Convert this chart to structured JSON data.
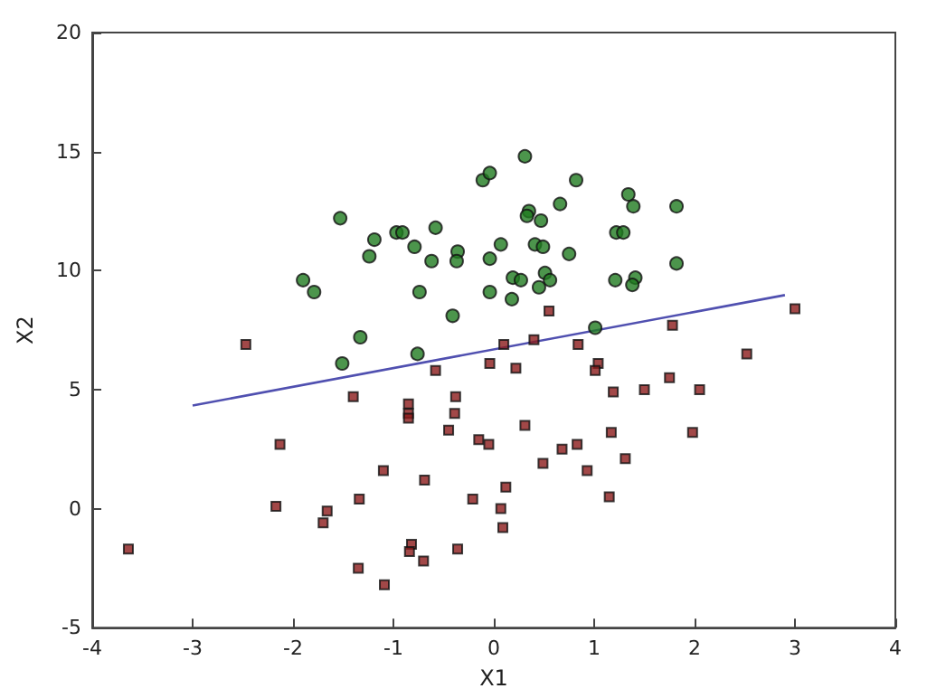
{
  "chart_data": {
    "type": "scatter",
    "xlabel": "X1",
    "ylabel": "X2",
    "xlim": [
      -4,
      4
    ],
    "xticks": [
      -4,
      -3,
      -2,
      -1,
      0,
      1,
      2,
      3,
      4
    ],
    "ylim": [
      -5,
      20
    ],
    "yticks": [
      -5,
      0,
      5,
      10,
      15,
      20
    ],
    "grid": false,
    "series": [
      {
        "marker": "circle",
        "color": "#1f7a1f",
        "x": [
          -1.53,
          -1.9,
          -1.79,
          -1.19,
          -1.24,
          -0.97,
          -0.91,
          -0.79,
          -0.58,
          -0.62,
          -0.36,
          -0.37,
          -0.74,
          -0.41,
          -1.33,
          -0.76,
          -1.51,
          -0.11,
          -0.04,
          -0.04,
          -0.04,
          0.31,
          0.82,
          0.66,
          0.35,
          0.33,
          0.47,
          1.34,
          1.39,
          1.82,
          1.22,
          1.29,
          0.07,
          0.41,
          0.49,
          0.75,
          1.82,
          0.19,
          0.27,
          0.51,
          0.56,
          0.45,
          1.21,
          1.41,
          1.38,
          0.18,
          1.01
        ],
        "values": [
          12.2,
          9.6,
          9.1,
          11.3,
          10.6,
          11.6,
          11.6,
          11.0,
          11.8,
          10.4,
          10.8,
          10.4,
          9.1,
          8.1,
          7.2,
          6.5,
          6.1,
          13.8,
          14.1,
          10.5,
          9.1,
          14.8,
          13.8,
          12.8,
          12.5,
          12.3,
          12.1,
          13.2,
          12.7,
          12.7,
          11.6,
          11.6,
          11.1,
          11.1,
          11.0,
          10.7,
          10.3,
          9.7,
          9.6,
          9.9,
          9.6,
          9.3,
          9.6,
          9.7,
          9.4,
          8.8,
          7.6
        ]
      },
      {
        "marker": "square",
        "color": "#8b1a1a",
        "x": [
          -2.47,
          -0.58,
          -0.04,
          -0.38,
          -1.4,
          -0.85,
          -0.85,
          -0.85,
          -0.39,
          -0.45,
          -2.13,
          -0.15,
          -0.05,
          -1.1,
          -0.69,
          -2.17,
          -1.66,
          -1.7,
          -1.34,
          -0.21,
          -0.82,
          -0.84,
          -0.36,
          -0.7,
          -1.35,
          -1.09,
          -3.64,
          0.55,
          1.78,
          3.0,
          0.1,
          0.4,
          0.84,
          0.22,
          1.04,
          1.01,
          2.52,
          1.19,
          1.5,
          1.75,
          2.05,
          0.31,
          1.17,
          1.98,
          0.49,
          0.68,
          0.83,
          1.31,
          0.93,
          0.12,
          0.07,
          0.09,
          1.15
        ],
        "values": [
          6.9,
          5.8,
          6.1,
          4.7,
          4.7,
          4.4,
          4.0,
          3.8,
          4.0,
          3.3,
          2.7,
          2.9,
          2.7,
          1.6,
          1.2,
          0.1,
          -0.1,
          -0.6,
          0.4,
          0.4,
          -1.5,
          -1.8,
          -1.7,
          -2.2,
          -2.5,
          -3.2,
          -1.7,
          8.3,
          7.7,
          8.4,
          6.9,
          7.1,
          6.9,
          5.9,
          6.1,
          5.8,
          6.5,
          4.9,
          5.0,
          5.5,
          5.0,
          3.5,
          3.2,
          3.2,
          1.9,
          2.5,
          2.7,
          2.1,
          1.6,
          0.9,
          0.0,
          -0.8,
          0.5
        ]
      },
      {
        "type": "line",
        "marker": "none",
        "line_style": "solid",
        "color": "#5050b0",
        "x": [
          -3,
          2.9
        ],
        "values": [
          4.33,
          8.97
        ]
      }
    ]
  }
}
